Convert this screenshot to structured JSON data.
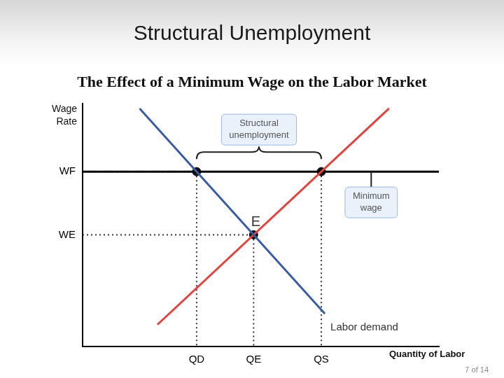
{
  "slide_title": "Structural Unemployment",
  "page_label": "7 of 14",
  "chart_data": {
    "type": "line",
    "title": "The Effect of a Minimum Wage on the Labor Market",
    "x_label": "Quantity of Labor",
    "y_label": "Wage Rate",
    "xlim": [
      0,
      100
    ],
    "ylim": [
      0,
      100
    ],
    "xticks": [
      {
        "value": 32,
        "label": "QD"
      },
      {
        "value": 48,
        "label": "QE"
      },
      {
        "value": 67,
        "label": "QS"
      }
    ],
    "yticks": [
      {
        "value": 46,
        "label": "WE"
      },
      {
        "value": 72,
        "label": "WF"
      }
    ],
    "grid": false,
    "series": [
      {
        "name": "Labor demand",
        "color": "#3a5ca8",
        "x": [
          16,
          68
        ],
        "values": [
          98,
          13.5
        ]
      },
      {
        "color": "#e8413c",
        "x": [
          21,
          86
        ],
        "values": [
          9,
          98
        ]
      },
      {
        "color": "#000000",
        "x": [
          0,
          100
        ],
        "values": [
          72,
          72
        ]
      }
    ],
    "points": [
      {
        "x": 32,
        "y": 72
      },
      {
        "x": 67,
        "y": 72
      },
      {
        "x": 48,
        "y": 46,
        "label": "E"
      }
    ],
    "annotations": [
      {
        "text": "Structural unemployment",
        "from": 32,
        "to": 67,
        "y": 72
      },
      {
        "text": "Minimum wage",
        "y": 72
      }
    ]
  }
}
